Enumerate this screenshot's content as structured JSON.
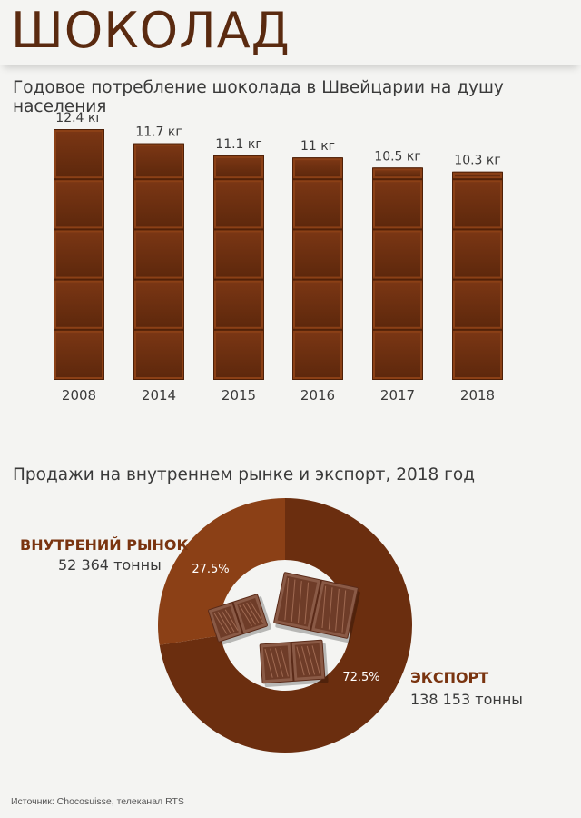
{
  "page": {
    "title": "ШОКОЛАД",
    "source": "Источник: Chocosuisse, телеканал RTS"
  },
  "colors": {
    "chocolate_dark": "#6b2e0f",
    "chocolate_light": "#8b4016",
    "title": "#5a2a10",
    "legend_label": "#7a3410",
    "background": "#f4f4f2"
  },
  "chart_data": [
    {
      "type": "bar",
      "title": "Годовое потребление шоколада в Швейцарии на душу населения",
      "categories": [
        "2008",
        "2014",
        "2015",
        "2016",
        "2017",
        "2018"
      ],
      "values": [
        12.4,
        11.7,
        11.1,
        11,
        10.5,
        10.3
      ],
      "data_labels": [
        "12.4 кг",
        "11.7 кг",
        "11.1 кг",
        "11 кг",
        "10.5 кг",
        "10.3 кг"
      ],
      "unit": "кг",
      "xlabel": "",
      "ylabel": "",
      "grid": false,
      "ylim": [
        0,
        12.4
      ]
    },
    {
      "type": "pie",
      "donut": true,
      "title": "Продажи на внутреннем рынке и экспорт, 2018 год",
      "labels": [
        "ВНУТРЕНИЙ РЫНОК",
        "ЭКСПОРТ"
      ],
      "values": [
        52364,
        138153
      ],
      "value_labels": [
        "52 364 тонны",
        "138 153 тонны"
      ],
      "percent_labels": [
        "27.5%",
        "72.5%"
      ],
      "percents": [
        27.5,
        72.5
      ],
      "colors": [
        "#8b4016",
        "#6b2e0f"
      ]
    }
  ]
}
